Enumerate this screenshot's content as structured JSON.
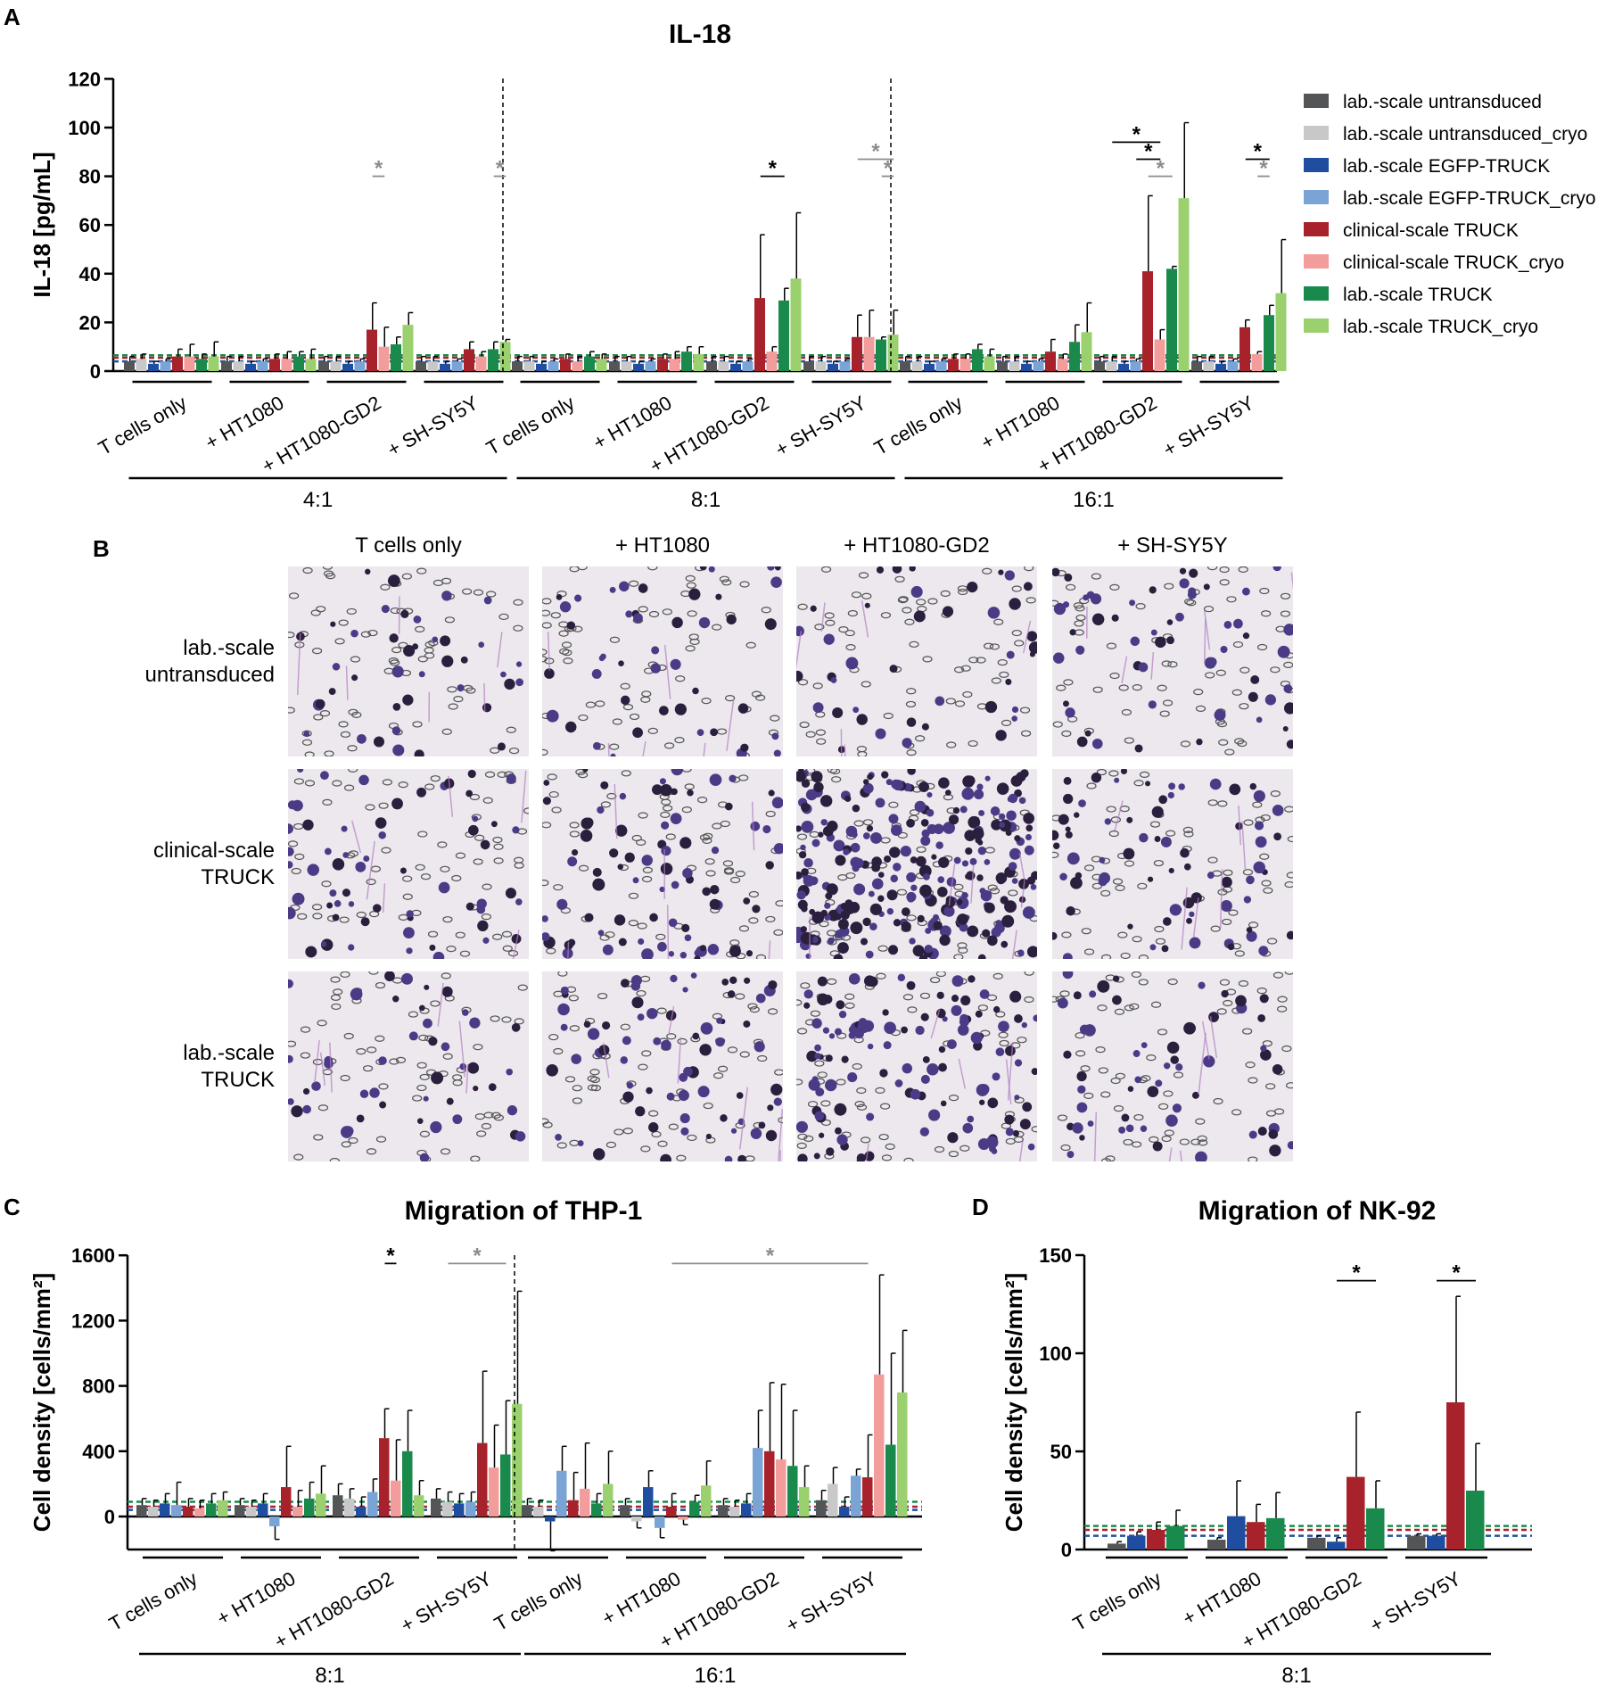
{
  "panels": {
    "A": "A",
    "B": "B",
    "C": "C",
    "D": "D"
  },
  "colors": {
    "lab_untr": "#545556",
    "lab_untr_cryo": "#c8c8c8",
    "lab_egfp": "#1f4ea1",
    "lab_egfp_cryo": "#7aa4d6",
    "clin_truck": "#a7222a",
    "clin_truck_cryo": "#f39c9c",
    "lab_truck": "#198a4b",
    "lab_truck_cryo": "#9bd06f"
  },
  "legend": [
    {
      "label": "lab.-scale untransduced",
      "color": "#545556"
    },
    {
      "label": "lab.-scale untransduced_cryo",
      "color": "#c8c8c8"
    },
    {
      "label": "lab.-scale EGFP-TRUCK",
      "color": "#1f4ea1"
    },
    {
      "label": "lab.-scale EGFP-TRUCK_cryo",
      "color": "#7aa4d6"
    },
    {
      "label": "clinical-scale TRUCK",
      "color": "#a7222a"
    },
    {
      "label": "clinical-scale TRUCK_cryo",
      "color": "#f39c9c"
    },
    {
      "label": "lab.-scale TRUCK",
      "color": "#198a4b"
    },
    {
      "label": "lab.-scale TRUCK_cryo",
      "color": "#9bd06f"
    }
  ],
  "panelB": {
    "columns": [
      "T cells only",
      "+ HT1080",
      "+ HT1080-GD2",
      "+ SH-SY5Y"
    ],
    "rows": [
      [
        "lab.-scale",
        "untransduced"
      ],
      [
        "clinical-scale",
        "TRUCK"
      ],
      [
        "lab.-scale",
        "TRUCK"
      ]
    ]
  },
  "chart_data": [
    {
      "id": "A",
      "type": "bar",
      "title": "IL-18",
      "ylabel": "IL-18 [pg/mL]",
      "ylim": [
        0,
        120
      ],
      "yticks": [
        0,
        20,
        40,
        60,
        80,
        100,
        120
      ],
      "categories": [
        "T cells only",
        "+ HT1080",
        "+ HT1080-GD2",
        "+ SH-SY5Y"
      ],
      "groups": [
        "4:1",
        "8:1",
        "16:1"
      ],
      "series_names": [
        "lab.-scale untransduced",
        "lab.-scale untransduced_cryo",
        "lab.-scale EGFP-TRUCK",
        "lab.-scale EGFP-TRUCK_cryo",
        "clinical-scale TRUCK",
        "clinical-scale TRUCK_cryo",
        "lab.-scale TRUCK",
        "lab.-scale TRUCK_cryo"
      ],
      "values": [
        [
          [
            4,
            5,
            3,
            4,
            6,
            6,
            5,
            6
          ],
          [
            4,
            4,
            3,
            4,
            5,
            5,
            6,
            5
          ],
          [
            4,
            4,
            3,
            4,
            17,
            10,
            11,
            19
          ],
          [
            4,
            4,
            3,
            4,
            9,
            6,
            9,
            12
          ]
        ],
        [
          [
            4,
            4,
            3,
            4,
            5,
            4,
            6,
            5
          ],
          [
            4,
            4,
            3,
            4,
            5,
            5,
            8,
            7
          ],
          [
            4,
            4,
            3,
            4,
            30,
            8,
            29,
            38
          ],
          [
            4,
            4,
            3,
            4,
            14,
            14,
            13,
            15
          ]
        ],
        [
          [
            4,
            4,
            3,
            4,
            5,
            5,
            9,
            6
          ],
          [
            4,
            4,
            3,
            4,
            8,
            5,
            12,
            16
          ],
          [
            4,
            4,
            3,
            4,
            41,
            13,
            42,
            71
          ],
          [
            4,
            4,
            3,
            4,
            18,
            7,
            23,
            32
          ]
        ]
      ],
      "errors": [
        [
          [
            2,
            2,
            1,
            1,
            3,
            5,
            2,
            6
          ],
          [
            2,
            2,
            1,
            1,
            2,
            3,
            2,
            4
          ],
          [
            2,
            2,
            1,
            1,
            11,
            8,
            3,
            5
          ],
          [
            2,
            2,
            1,
            1,
            3,
            2,
            3,
            1
          ]
        ],
        [
          [
            2,
            2,
            1,
            1,
            2,
            2,
            2,
            2
          ],
          [
            2,
            2,
            1,
            1,
            2,
            3,
            2,
            3
          ],
          [
            2,
            2,
            1,
            1,
            26,
            2,
            5,
            27
          ],
          [
            2,
            2,
            1,
            1,
            9,
            11,
            1,
            10
          ]
        ],
        [
          [
            2,
            2,
            1,
            1,
            2,
            2,
            2,
            3
          ],
          [
            2,
            2,
            1,
            1,
            5,
            2,
            7,
            12
          ],
          [
            2,
            2,
            1,
            1,
            31,
            4,
            1,
            31
          ],
          [
            2,
            2,
            1,
            1,
            3,
            1,
            4,
            22
          ]
        ]
      ],
      "ref_lines": [
        {
          "value": 6.5,
          "color": "#198a4b"
        },
        {
          "value": 5.5,
          "color": "#a7222a"
        },
        {
          "value": 4,
          "color": "#1f4ea1"
        }
      ],
      "significance": [
        {
          "group": 0,
          "cat": 2,
          "from": 4,
          "to": 5,
          "y": 80,
          "color": "gray",
          "label": "*"
        },
        {
          "group": 0,
          "cat": 3,
          "from": 6,
          "to": 7,
          "y": 80,
          "color": "gray",
          "label": "*"
        },
        {
          "group": 1,
          "cat": 2,
          "from": 4,
          "to": 6,
          "y": 80,
          "color": "black",
          "label": "*"
        },
        {
          "group": 1,
          "cat": 3,
          "from": 4,
          "to": 7,
          "y": 87,
          "color": "gray",
          "label": "*"
        },
        {
          "group": 1,
          "cat": 3,
          "from": 6,
          "to": 7,
          "y": 80,
          "color": "gray",
          "label": "*"
        },
        {
          "group": 2,
          "cat": 2,
          "from": 1,
          "to": 5,
          "y": 94,
          "color": "black",
          "label": "*"
        },
        {
          "group": 2,
          "cat": 2,
          "from": 3,
          "to": 5,
          "y": 87,
          "color": "black",
          "label": "*"
        },
        {
          "group": 2,
          "cat": 2,
          "from": 4,
          "to": 6,
          "y": 80,
          "color": "gray",
          "label": "*"
        },
        {
          "group": 2,
          "cat": 3,
          "from": 4,
          "to": 6,
          "y": 87,
          "color": "black",
          "label": "*"
        },
        {
          "group": 2,
          "cat": 3,
          "from": 5,
          "to": 6,
          "y": 80,
          "color": "gray",
          "label": "*"
        }
      ]
    },
    {
      "id": "C",
      "type": "bar",
      "title": "Migration of THP-1",
      "ylabel": "Cell density [cells/mm²]",
      "ylim": [
        -200,
        1600
      ],
      "yticks": [
        0,
        400,
        800,
        1200,
        1600
      ],
      "categories": [
        "T cells only",
        "+ HT1080",
        "+ HT1080-GD2",
        "+ SH-SY5Y"
      ],
      "groups": [
        "8:1",
        "16:1"
      ],
      "series_names": [
        "lab.-scale untransduced",
        "lab.-scale untransduced_cryo",
        "lab.-scale EGFP-TRUCK",
        "lab.-scale EGFP-TRUCK_cryo",
        "clinical-scale TRUCK",
        "clinical-scale TRUCK_cryo",
        "lab.-scale TRUCK",
        "lab.-scale TRUCK_cryo"
      ],
      "values": [
        [
          [
            70,
            60,
            80,
            70,
            60,
            50,
            80,
            100
          ],
          [
            70,
            60,
            80,
            -60,
            180,
            60,
            110,
            140
          ],
          [
            130,
            110,
            60,
            150,
            480,
            220,
            400,
            130
          ],
          [
            110,
            90,
            80,
            90,
            450,
            300,
            380,
            690
          ]
        ],
        [
          [
            70,
            60,
            -30,
            280,
            100,
            170,
            80,
            200
          ],
          [
            70,
            -30,
            180,
            -70,
            60,
            -20,
            90,
            190
          ],
          [
            70,
            60,
            80,
            420,
            400,
            350,
            310,
            180
          ],
          [
            100,
            200,
            60,
            250,
            240,
            870,
            440,
            760
          ]
        ]
      ],
      "errors": [
        [
          [
            40,
            40,
            60,
            140,
            50,
            50,
            60,
            50
          ],
          [
            40,
            40,
            60,
            80,
            250,
            100,
            100,
            170
          ],
          [
            70,
            60,
            60,
            80,
            180,
            250,
            250,
            90
          ],
          [
            60,
            60,
            60,
            60,
            440,
            260,
            330,
            690
          ]
        ],
        [
          [
            40,
            40,
            180,
            150,
            170,
            280,
            60,
            200
          ],
          [
            40,
            40,
            100,
            60,
            80,
            30,
            40,
            150
          ],
          [
            40,
            40,
            60,
            230,
            420,
            460,
            340,
            130
          ],
          [
            60,
            100,
            60,
            40,
            260,
            610,
            560,
            380
          ]
        ]
      ],
      "ref_lines": [
        {
          "value": 90,
          "color": "#198a4b"
        },
        {
          "value": 60,
          "color": "#a7222a"
        },
        {
          "value": 40,
          "color": "#1f4ea1"
        }
      ],
      "significance": [
        {
          "group": 0,
          "cat": 2,
          "from": 4,
          "to": 5,
          "y": 1550,
          "color": "black",
          "label": "*"
        },
        {
          "group": 0,
          "cat": 3,
          "from": 1,
          "to": 6,
          "y": 1550,
          "color": "gray",
          "label": "*"
        },
        {
          "group": 1,
          "cat": 1,
          "from": 4,
          "to": 8,
          "y": 1550,
          "color": "gray",
          "label": "*",
          "to_group_cat": [
            3,
            4
          ]
        }
      ]
    },
    {
      "id": "D",
      "type": "bar",
      "title": "Migration of NK-92",
      "ylabel": "Cell density [cells/mm²]",
      "ylim": [
        0,
        150
      ],
      "yticks": [
        0,
        50,
        100,
        150
      ],
      "categories": [
        "T cells only",
        "+ HT1080",
        "+ HT1080-GD2",
        "+ SH-SY5Y"
      ],
      "groups": [
        "8:1"
      ],
      "series_names": [
        "lab.-scale untransduced",
        "lab.-scale EGFP-TRUCK",
        "clinical-scale TRUCK",
        "lab.-scale TRUCK"
      ],
      "series_colors": [
        "#545556",
        "#1f4ea1",
        "#a7222a",
        "#198a4b"
      ],
      "values": [
        [
          [
            3,
            7,
            10,
            12
          ],
          [
            5,
            17,
            14,
            16
          ],
          [
            6,
            4,
            37,
            21
          ],
          [
            7,
            7,
            75,
            30
          ]
        ]
      ],
      "errors": [
        [
          [
            1,
            2,
            4,
            8
          ],
          [
            1,
            18,
            9,
            13
          ],
          [
            1,
            2,
            33,
            14
          ],
          [
            1,
            1,
            54,
            24
          ]
        ]
      ],
      "ref_lines": [
        {
          "value": 12,
          "color": "#198a4b"
        },
        {
          "value": 10,
          "color": "#a7222a"
        },
        {
          "value": 7,
          "color": "#1f4ea1"
        }
      ],
      "significance": [
        {
          "group": 0,
          "cat": 2,
          "from": 1,
          "to": 3,
          "y": 137,
          "color": "black",
          "label": "*"
        },
        {
          "group": 0,
          "cat": 3,
          "from": 1,
          "to": 3,
          "y": 137,
          "color": "black",
          "label": "*"
        }
      ]
    }
  ]
}
